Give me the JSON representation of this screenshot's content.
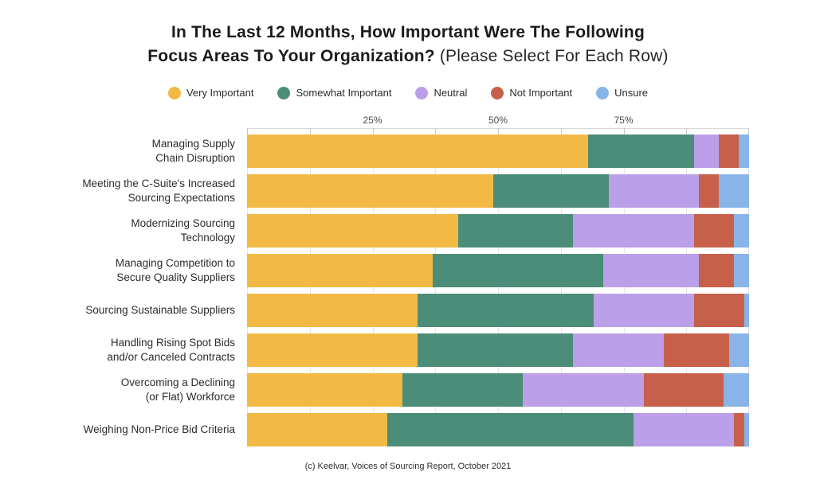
{
  "title": {
    "line1": "In The Last 12 Months, How Important Were The Following",
    "line2_bold": "Focus Areas To Your Organization?",
    "line2_note": "(Please Select For Each Row)"
  },
  "footer": {
    "text": "(c) Keelvar, Voices of Sourcing Report, October 2021"
  },
  "colors": {
    "very_important": "#F2BA45",
    "somewhat_important": "#4C8D79",
    "neutral": "#BB9FE8",
    "not_important": "#C7604B",
    "unsure": "#88B4E8",
    "gridline": "#e2e6ee",
    "axis_line": "#d7d7d7"
  },
  "chart_data": {
    "type": "bar",
    "orientation": "horizontal",
    "stacked": true,
    "unit": "percent",
    "xlim": [
      0,
      100
    ],
    "grid": true,
    "minor_grid_interval": 12.5,
    "x_tick_labels": [
      "25%",
      "50%",
      "75%"
    ],
    "x_tick_positions": [
      25,
      50,
      75
    ],
    "legend_position": "top",
    "categories": [
      [
        "Managing Supply",
        "Chain Disruption"
      ],
      [
        "Meeting the C-Suite's Increased",
        "Sourcing Expectations"
      ],
      [
        "Modernizing Sourcing",
        "Technology"
      ],
      [
        "Managing Competition to",
        "Secure Quality Suppliers"
      ],
      [
        "Sourcing Sustainable Suppliers"
      ],
      [
        "Handling Rising Spot Bids",
        "and/or Canceled Contracts"
      ],
      [
        "Overcoming a Declining",
        "(or Flat) Workforce"
      ],
      [
        "Weighing Non-Price Bid Criteria"
      ]
    ],
    "series": [
      {
        "name": "Very Important",
        "color": "#F2BA45",
        "values": [
          68,
          49,
          42,
          37,
          34,
          34,
          31,
          28
        ]
      },
      {
        "name": "Somewhat Important",
        "color": "#4C8D79",
        "values": [
          21,
          23,
          23,
          34,
          35,
          31,
          24,
          49
        ]
      },
      {
        "name": "Neutral",
        "color": "#BB9FE8",
        "values": [
          5,
          18,
          24,
          19,
          20,
          18,
          24,
          20
        ]
      },
      {
        "name": "Not Important",
        "color": "#C7604B",
        "values": [
          4,
          4,
          8,
          7,
          10,
          13,
          16,
          2
        ]
      },
      {
        "name": "Unsure",
        "color": "#88B4E8",
        "values": [
          2,
          6,
          3,
          3,
          1,
          4,
          5,
          1
        ]
      }
    ]
  }
}
